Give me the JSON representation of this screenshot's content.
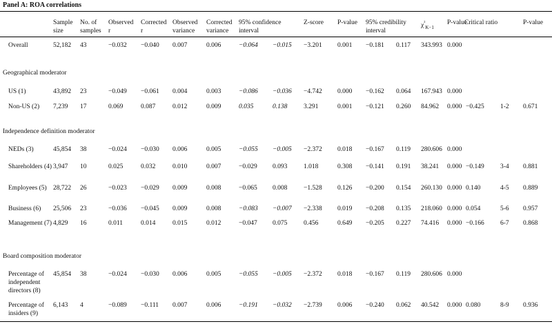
{
  "panel_title": "Panel A: ROA correlations",
  "headers": {
    "sample_size": "Sample size",
    "no_samples": "No. of samples",
    "observed_r": "Observed r",
    "corrected_r": "Corrected r",
    "observed_variance": "Observed variance",
    "corrected_variance": "Corrected variance",
    "ci95": "95% confidence interval",
    "zscore": "Z-score",
    "pvalue1": "P-value",
    "cred95": "95% credibility interval",
    "chi2": "χ²K−1",
    "pvalue2": "P-value",
    "critical_ratio": "Critical ratio",
    "pvalue3": "P-value"
  },
  "sections": {
    "geo": "Geographical moderator",
    "indep": "Independence definition moderator",
    "board": "Board composition moderator"
  },
  "rows": [
    {
      "label": "Overall",
      "n": "52,182",
      "k": "43",
      "obs_r": "−0.032",
      "cor_r": "−0.040",
      "obs_var": "0.007",
      "cor_var": "0.006",
      "ci_lo": "−0.064",
      "ci_hi": "−0.015",
      "z": "−3.201",
      "p": "0.001",
      "cr_lo": "−0.181",
      "cr_hi": "0.117",
      "chi2": "343.993",
      "p2": "0.000",
      "crit": "",
      "pair": "",
      "p3": ""
    },
    {
      "label": "US (1)",
      "n": "43,892",
      "k": "23",
      "obs_r": "−0.049",
      "cor_r": "−0.061",
      "obs_var": "0.004",
      "cor_var": "0.003",
      "ci_lo": "−0.086",
      "ci_hi": "−0.036",
      "z": "−4.742",
      "p": "0.000",
      "cr_lo": "−0.162",
      "cr_hi": "0.064",
      "chi2": "167.943",
      "p2": "0.000",
      "crit": "",
      "pair": "",
      "p3": ""
    },
    {
      "label": "Non-US (2)",
      "n": "7,239",
      "k": "17",
      "obs_r": "0.069",
      "cor_r": "0.087",
      "obs_var": "0.012",
      "cor_var": "0.009",
      "ci_lo": "0.035",
      "ci_hi": "0.138",
      "z": "3.291",
      "p": "0.001",
      "cr_lo": "−0.121",
      "cr_hi": "0.260",
      "chi2": "84.962",
      "p2": "0.000",
      "crit": "−0.425",
      "pair": "1-2",
      "p3": "0.671"
    },
    {
      "label": "NEDs (3)",
      "n": "45,854",
      "k": "38",
      "obs_r": "−0.024",
      "cor_r": "−0.030",
      "obs_var": "0.006",
      "cor_var": "0.005",
      "ci_lo": "−0.055",
      "ci_hi": "−0.005",
      "z": "−2.372",
      "p": "0.018",
      "cr_lo": "−0.167",
      "cr_hi": "0.119",
      "chi2": "280.606",
      "p2": "0.000",
      "crit": "",
      "pair": "",
      "p3": ""
    },
    {
      "label": "Shareholders (4)",
      "n": "3,947",
      "k": "10",
      "obs_r": "0.025",
      "cor_r": "0.032",
      "obs_var": "0.010",
      "cor_var": "0.007",
      "ci_lo": "−0.029",
      "ci_hi": "0.093",
      "z": "1.018",
      "p": "0.308",
      "cr_lo": "−0.141",
      "cr_hi": "0.191",
      "chi2": "38.241",
      "p2": "0.000",
      "crit": "−0.149",
      "pair": "3-4",
      "p3": "0.881"
    },
    {
      "label": "Employees (5)",
      "n": "28,722",
      "k": "26",
      "obs_r": "−0.023",
      "cor_r": "−0.029",
      "obs_var": "0.009",
      "cor_var": "0.008",
      "ci_lo": "−0.065",
      "ci_hi": "0.008",
      "z": "−1.528",
      "p": "0.126",
      "cr_lo": "−0.200",
      "cr_hi": "0.154",
      "chi2": "260.130",
      "p2": "0.000",
      "crit": "0.140",
      "pair": "4-5",
      "p3": "0.889"
    },
    {
      "label": "Business (6)",
      "n": "25,506",
      "k": "23",
      "obs_r": "−0.036",
      "cor_r": "−0.045",
      "obs_var": "0.009",
      "cor_var": "0.008",
      "ci_lo": "−0.083",
      "ci_hi": "−0.007",
      "z": "−2.338",
      "p": "0.019",
      "cr_lo": "−0.208",
      "cr_hi": "0.135",
      "chi2": "218.060",
      "p2": "0.000",
      "crit": "0.054",
      "pair": "5-6",
      "p3": "0.957"
    },
    {
      "label": "Management (7)",
      "n": "4,829",
      "k": "16",
      "obs_r": "0.011",
      "cor_r": "0.014",
      "obs_var": "0.015",
      "cor_var": "0.012",
      "ci_lo": "−0.047",
      "ci_hi": "0.075",
      "z": "0.456",
      "p": "0.649",
      "cr_lo": "−0.205",
      "cr_hi": "0.227",
      "chi2": "74.416",
      "p2": "0.000",
      "crit": "−0.166",
      "pair": "6-7",
      "p3": "0.868"
    },
    {
      "label": "Percentage of independent directors (8)",
      "n": "45,854",
      "k": "38",
      "obs_r": "−0.024",
      "cor_r": "−0.030",
      "obs_var": "0.006",
      "cor_var": "0.005",
      "ci_lo": "−0.055",
      "ci_hi": "−0.005",
      "z": "−2.372",
      "p": "0.018",
      "cr_lo": "−0.167",
      "cr_hi": "0.119",
      "chi2": "280.606",
      "p2": "0.000",
      "crit": "",
      "pair": "",
      "p3": ""
    },
    {
      "label": "Percentage of insiders (9)",
      "n": "6,143",
      "k": "4",
      "obs_r": "−0.089",
      "cor_r": "−0.111",
      "obs_var": "0.007",
      "cor_var": "0.006",
      "ci_lo": "−0.191",
      "ci_hi": "−0.032",
      "z": "−2.739",
      "p": "0.006",
      "cr_lo": "−0.240",
      "cr_hi": "0.062",
      "chi2": "40.542",
      "p2": "0.000",
      "crit": "0.080",
      "pair": "8-9",
      "p3": "0.936"
    }
  ]
}
